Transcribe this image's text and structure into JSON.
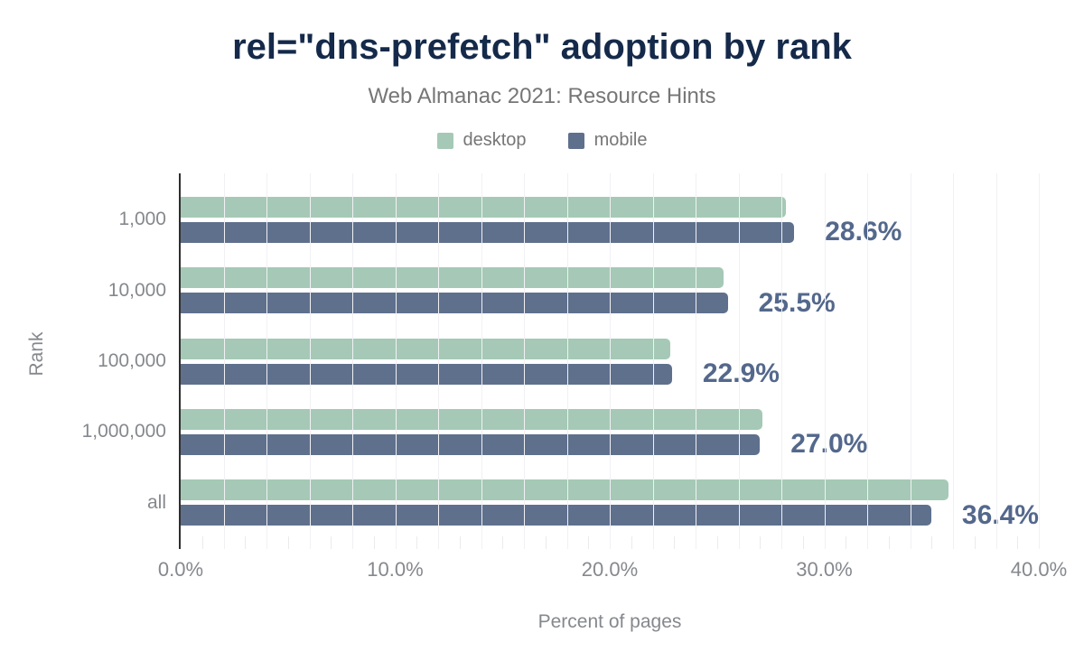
{
  "chart_data": {
    "type": "bar",
    "orientation": "horizontal",
    "title": "rel=\"dns-prefetch\" adoption by rank",
    "subtitle": "Web Almanac 2021: Resource Hints",
    "xlabel": "Percent of pages",
    "ylabel": "Rank",
    "xlim": [
      0,
      40
    ],
    "xticks": [
      {
        "value": 0,
        "label": "0.0%"
      },
      {
        "value": 10,
        "label": "10.0%"
      },
      {
        "value": 20,
        "label": "20.0%"
      },
      {
        "value": 30,
        "label": "30.0%"
      },
      {
        "value": 40,
        "label": "40.0%"
      }
    ],
    "grid": {
      "major_step_pct": 2,
      "minor_step_pct": 1
    },
    "legend_position": "top",
    "categories": [
      "1,000",
      "10,000",
      "100,000",
      "1,000,000",
      "all"
    ],
    "series": [
      {
        "name": "desktop",
        "color": "#a5c9b6",
        "values": [
          28.2,
          25.3,
          22.8,
          27.1,
          35.8
        ]
      },
      {
        "name": "mobile",
        "color": "#5f708d",
        "values": [
          28.6,
          25.5,
          22.9,
          27.0,
          36.4
        ]
      }
    ],
    "data_labels": {
      "series": "mobile",
      "values": [
        "28.6%",
        "25.5%",
        "22.9%",
        "27.0%",
        "36.4%"
      ]
    },
    "colors": {
      "title_text": "#152a4a",
      "subtitle_text": "#767676",
      "axis_text": "#85888d",
      "data_label_text": "#54688c",
      "axis_line": "#2e2e2e",
      "gridline": "#f1f1f4"
    }
  }
}
